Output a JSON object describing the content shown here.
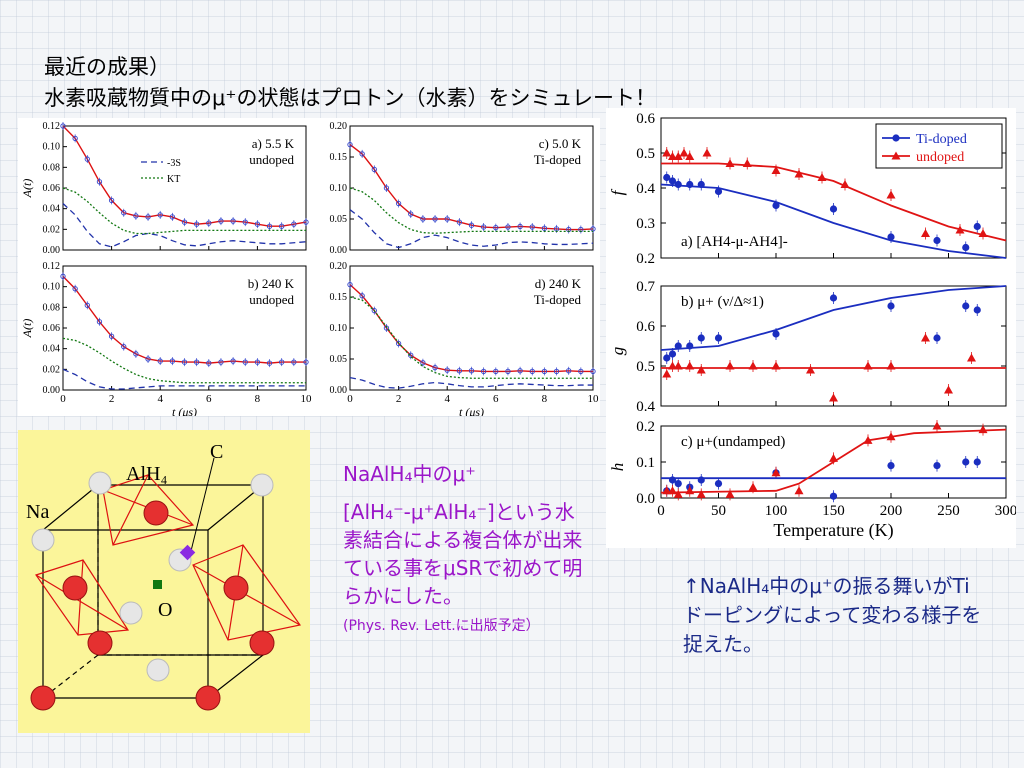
{
  "title": {
    "line1": "最近の成果）",
    "line2": "水素吸蔵物質中のμ⁺の状態はプロトン（水素）をシミュレート！"
  },
  "caption_left": {
    "line1": "NaAlH₄中のμ⁺",
    "line2": "[AlH₄⁻-μ⁺AlH₄⁻]という水素結合による複合体が出来ている事をμSRで初めて明らかにした。",
    "ref": "(Phys. Rev. Lett.に出版予定）"
  },
  "caption_right": "↑NaAlH₄中のμ⁺の振る舞いがTiドーピングによって変わる様子を捉えた。",
  "molecule_labels": {
    "c": "C",
    "alh4": "AlH₄",
    "na": "Na",
    "o": "O"
  },
  "colors": {
    "data": "#3344cc",
    "fit": "#dd1111",
    "s3": "#2233aa",
    "kt": "#117711",
    "ti": "#1b2ec0",
    "undoped": "#e01414"
  },
  "chart_data": [
    {
      "type": "line",
      "panel": "a) 5.5 K\nundoped",
      "label_line1": "a) 5.5 K",
      "label_line2": "undoped",
      "ylabel": "A(t)",
      "xlabel": "",
      "ylim": [
        0,
        0.12
      ],
      "xlim": [
        0,
        10
      ],
      "yticks": [
        "0.00",
        "0.02",
        "0.04",
        "0.06",
        "0.08",
        "0.10",
        "0.12"
      ],
      "xticks": [],
      "legend": [
        "3S",
        "KT"
      ],
      "series": [
        {
          "name": "data",
          "x": [
            0,
            0.5,
            1,
            1.5,
            2,
            2.5,
            3,
            3.5,
            4,
            4.5,
            5,
            5.5,
            6,
            6.5,
            7,
            7.5,
            8,
            8.5,
            9,
            9.5,
            10
          ],
          "y": [
            0.12,
            0.108,
            0.088,
            0.066,
            0.048,
            0.036,
            0.033,
            0.032,
            0.034,
            0.032,
            0.027,
            0.025,
            0.026,
            0.028,
            0.028,
            0.027,
            0.025,
            0.023,
            0.023,
            0.025,
            0.027
          ]
        },
        {
          "name": "3S",
          "x": [
            0,
            0.5,
            1,
            1.5,
            2,
            2.5,
            3,
            3.5,
            4,
            4.5,
            5,
            5.5,
            6,
            6.5,
            7,
            7.5,
            8,
            8.5,
            9,
            9.5,
            10
          ],
          "y": [
            0.045,
            0.034,
            0.018,
            0.006,
            0.003,
            0.008,
            0.014,
            0.016,
            0.014,
            0.009,
            0.005,
            0.004,
            0.006,
            0.008,
            0.009,
            0.008,
            0.007,
            0.006,
            0.006,
            0.007,
            0.008
          ]
        },
        {
          "name": "KT",
          "x": [
            0,
            0.5,
            1,
            1.5,
            2,
            2.5,
            3,
            3.5,
            4,
            4.5,
            5,
            5.5,
            6,
            6.5,
            7,
            7.5,
            8,
            8.5,
            9,
            9.5,
            10
          ],
          "y": [
            0.06,
            0.056,
            0.047,
            0.036,
            0.026,
            0.019,
            0.016,
            0.016,
            0.017,
            0.018,
            0.019,
            0.019,
            0.019,
            0.019,
            0.019,
            0.019,
            0.019,
            0.019,
            0.019,
            0.019,
            0.019
          ]
        }
      ]
    },
    {
      "type": "line",
      "panel": "c) 5.0 K\nTi-doped",
      "label_line1": "c) 5.0 K",
      "label_line2": "Ti-doped",
      "ylabel": "",
      "xlabel": "",
      "ylim": [
        0,
        0.2
      ],
      "xlim": [
        0,
        10
      ],
      "yticks": [
        "0.00",
        "0.05",
        "0.10",
        "0.15",
        "0.20"
      ],
      "xticks": [],
      "legend": [],
      "series": [
        {
          "name": "data",
          "x": [
            0,
            0.5,
            1,
            1.5,
            2,
            2.5,
            3,
            3.5,
            4,
            4.5,
            5,
            5.5,
            6,
            6.5,
            7,
            7.5,
            8,
            8.5,
            9,
            9.5,
            10
          ],
          "y": [
            0.17,
            0.155,
            0.13,
            0.1,
            0.075,
            0.058,
            0.05,
            0.05,
            0.05,
            0.045,
            0.04,
            0.037,
            0.036,
            0.037,
            0.038,
            0.037,
            0.035,
            0.034,
            0.033,
            0.033,
            0.034
          ]
        },
        {
          "name": "3S",
          "x": [
            0,
            0.5,
            1,
            1.5,
            2,
            2.5,
            3,
            3.5,
            4,
            4.5,
            5,
            5.5,
            6,
            6.5,
            7,
            7.5,
            8,
            8.5,
            9,
            9.5,
            10
          ],
          "y": [
            0.065,
            0.05,
            0.028,
            0.01,
            0.004,
            0.01,
            0.02,
            0.024,
            0.02,
            0.013,
            0.008,
            0.006,
            0.008,
            0.012,
            0.013,
            0.012,
            0.01,
            0.009,
            0.009,
            0.01,
            0.011
          ]
        },
        {
          "name": "KT",
          "x": [
            0,
            0.5,
            1,
            1.5,
            2,
            2.5,
            3,
            3.5,
            4,
            4.5,
            5,
            5.5,
            6,
            6.5,
            7,
            7.5,
            8,
            8.5,
            9,
            9.5,
            10
          ],
          "y": [
            0.1,
            0.094,
            0.08,
            0.06,
            0.044,
            0.033,
            0.028,
            0.027,
            0.028,
            0.029,
            0.03,
            0.03,
            0.03,
            0.03,
            0.03,
            0.03,
            0.03,
            0.03,
            0.03,
            0.03,
            0.03
          ]
        }
      ]
    },
    {
      "type": "line",
      "panel": "b) 240 K\nundoped",
      "label_line1": "b) 240 K",
      "label_line2": "undoped",
      "ylabel": "A(t)",
      "xlabel": "t (μs)",
      "ylim": [
        0,
        0.12
      ],
      "xlim": [
        0,
        10
      ],
      "yticks": [
        "0.00",
        "0.02",
        "0.04",
        "0.06",
        "0.08",
        "0.10",
        "0.12"
      ],
      "xticks": [
        "0",
        "2",
        "4",
        "6",
        "8",
        "10"
      ],
      "legend": [],
      "series": [
        {
          "name": "data",
          "x": [
            0,
            0.5,
            1,
            1.5,
            2,
            2.5,
            3,
            3.5,
            4,
            4.5,
            5,
            5.5,
            6,
            6.5,
            7,
            7.5,
            8,
            8.5,
            9,
            9.5,
            10
          ],
          "y": [
            0.11,
            0.098,
            0.082,
            0.066,
            0.052,
            0.042,
            0.035,
            0.03,
            0.028,
            0.028,
            0.027,
            0.027,
            0.026,
            0.027,
            0.028,
            0.027,
            0.027,
            0.026,
            0.027,
            0.027,
            0.027
          ]
        },
        {
          "name": "3S",
          "x": [
            0,
            0.5,
            1,
            1.5,
            2,
            2.5,
            3,
            3.5,
            4,
            4.5,
            5,
            5.5,
            6,
            6.5,
            7,
            7.5,
            8,
            8.5,
            9,
            9.5,
            10
          ],
          "y": [
            0.02,
            0.015,
            0.008,
            0.003,
            0.001,
            0.001,
            0.002,
            0.003,
            0.004,
            0.004,
            0.004,
            0.004,
            0.004,
            0.004,
            0.004,
            0.004,
            0.004,
            0.004,
            0.004,
            0.004,
            0.004
          ]
        },
        {
          "name": "KT",
          "x": [
            0,
            0.5,
            1,
            1.5,
            2,
            2.5,
            3,
            3.5,
            4,
            4.5,
            5,
            5.5,
            6,
            6.5,
            7,
            7.5,
            8,
            8.5,
            9,
            9.5,
            10
          ],
          "y": [
            0.05,
            0.048,
            0.043,
            0.036,
            0.028,
            0.021,
            0.015,
            0.011,
            0.009,
            0.008,
            0.007,
            0.007,
            0.007,
            0.007,
            0.007,
            0.007,
            0.007,
            0.007,
            0.007,
            0.007,
            0.007
          ]
        }
      ]
    },
    {
      "type": "line",
      "panel": "d) 240 K\nTi-doped",
      "label_line1": "d) 240 K",
      "label_line2": "Ti-doped",
      "ylabel": "",
      "xlabel": "t (μs)",
      "ylim": [
        0,
        0.2
      ],
      "xlim": [
        0,
        10
      ],
      "yticks": [
        "0.00",
        "0.05",
        "0.10",
        "0.15",
        "0.20"
      ],
      "xticks": [
        "0",
        "2",
        "4",
        "6",
        "8",
        "10"
      ],
      "legend": [],
      "series": [
        {
          "name": "data",
          "x": [
            0,
            0.5,
            1,
            1.5,
            2,
            2.5,
            3,
            3.5,
            4,
            4.5,
            5,
            5.5,
            6,
            6.5,
            7,
            7.5,
            8,
            8.5,
            9,
            9.5,
            10
          ],
          "y": [
            0.17,
            0.152,
            0.128,
            0.1,
            0.075,
            0.056,
            0.044,
            0.036,
            0.032,
            0.031,
            0.031,
            0.03,
            0.03,
            0.03,
            0.031,
            0.03,
            0.03,
            0.03,
            0.031,
            0.03,
            0.03
          ]
        },
        {
          "name": "3S",
          "x": [
            0,
            0.5,
            1,
            1.5,
            2,
            2.5,
            3,
            3.5,
            4,
            4.5,
            5,
            5.5,
            6,
            6.5,
            7,
            7.5,
            8,
            8.5,
            9,
            9.5,
            10
          ],
          "y": [
            0.02,
            0.016,
            0.009,
            0.004,
            0.003,
            0.006,
            0.01,
            0.012,
            0.01,
            0.007,
            0.005,
            0.005,
            0.007,
            0.009,
            0.01,
            0.009,
            0.008,
            0.007,
            0.007,
            0.008,
            0.008
          ]
        },
        {
          "name": "KT",
          "x": [
            0,
            0.5,
            1,
            1.5,
            2,
            2.5,
            3,
            3.5,
            4,
            4.5,
            5,
            5.5,
            6,
            6.5,
            7,
            7.5,
            8,
            8.5,
            9,
            9.5,
            10
          ],
          "y": [
            0.15,
            0.145,
            0.128,
            0.102,
            0.076,
            0.054,
            0.038,
            0.028,
            0.022,
            0.02,
            0.019,
            0.019,
            0.019,
            0.019,
            0.019,
            0.019,
            0.019,
            0.019,
            0.019,
            0.019,
            0.019
          ]
        }
      ]
    },
    {
      "type": "scatter",
      "panel": "a) [AH4-μ-AH4]-",
      "ylabel": "f",
      "xlabel": "Temperature (K)",
      "xlim": [
        0,
        300
      ],
      "ylim": [
        0.2,
        0.6
      ],
      "yticks": [
        "0.2",
        "0.3",
        "0.4",
        "0.5",
        "0.6"
      ],
      "legend": [
        "Ti-doped",
        "undoped"
      ],
      "series": [
        {
          "name": "Ti-doped",
          "x": [
            5,
            10,
            15,
            25,
            35,
            50,
            100,
            150,
            200,
            240,
            265,
            275
          ],
          "y": [
            0.43,
            0.42,
            0.41,
            0.41,
            0.41,
            0.39,
            0.35,
            0.34,
            0.26,
            0.25,
            0.23,
            0.29
          ]
        },
        {
          "name": "undoped",
          "x": [
            5,
            10,
            15,
            20,
            25,
            40,
            60,
            75,
            100,
            120,
            140,
            160,
            200,
            230,
            260,
            280
          ],
          "y": [
            0.5,
            0.49,
            0.49,
            0.5,
            0.49,
            0.5,
            0.47,
            0.47,
            0.45,
            0.44,
            0.43,
            0.41,
            0.38,
            0.27,
            0.28,
            0.27
          ]
        },
        {
          "name": "Ti-doped fit",
          "x": [
            0,
            50,
            100,
            150,
            200,
            250,
            300
          ],
          "y": [
            0.41,
            0.4,
            0.36,
            0.3,
            0.25,
            0.22,
            0.2
          ]
        },
        {
          "name": "undoped fit",
          "x": [
            0,
            50,
            100,
            150,
            200,
            250,
            300
          ],
          "y": [
            0.47,
            0.47,
            0.46,
            0.42,
            0.35,
            0.29,
            0.25
          ]
        }
      ]
    },
    {
      "type": "scatter",
      "panel": "b) μ+ (ν/Δ≈1)",
      "ylabel": "g",
      "xlabel": "Temperature (K)",
      "xlim": [
        0,
        300
      ],
      "ylim": [
        0.4,
        0.7
      ],
      "yticks": [
        "0.4",
        "0.5",
        "0.6",
        "0.7"
      ],
      "series": [
        {
          "name": "Ti-doped",
          "x": [
            5,
            10,
            15,
            25,
            35,
            50,
            100,
            150,
            200,
            240,
            265,
            275
          ],
          "y": [
            0.52,
            0.53,
            0.55,
            0.55,
            0.57,
            0.57,
            0.58,
            0.67,
            0.65,
            0.57,
            0.65,
            0.64
          ]
        },
        {
          "name": "undoped",
          "x": [
            5,
            10,
            15,
            25,
            35,
            60,
            80,
            100,
            130,
            150,
            180,
            200,
            230,
            250,
            270
          ],
          "y": [
            0.48,
            0.5,
            0.5,
            0.5,
            0.49,
            0.5,
            0.5,
            0.5,
            0.49,
            0.42,
            0.5,
            0.5,
            0.57,
            0.44,
            0.52
          ]
        },
        {
          "name": "Ti-doped fit",
          "x": [
            0,
            50,
            100,
            150,
            200,
            250,
            300
          ],
          "y": [
            0.54,
            0.55,
            0.59,
            0.64,
            0.67,
            0.69,
            0.7
          ]
        },
        {
          "name": "undoped fit",
          "x": [
            0,
            300
          ],
          "y": [
            0.495,
            0.495
          ]
        }
      ]
    },
    {
      "type": "scatter",
      "panel": "c) μ+(undamped)",
      "ylabel": "h",
      "xlabel": "Temperature (K)",
      "xlim": [
        0,
        300
      ],
      "ylim": [
        0,
        0.2
      ],
      "yticks": [
        "0.0",
        "0.1",
        "0.2"
      ],
      "xticks": [
        "0",
        "50",
        "100",
        "150",
        "200",
        "250",
        "300"
      ],
      "series": [
        {
          "name": "Ti-doped",
          "x": [
            5,
            10,
            15,
            25,
            35,
            50,
            100,
            150,
            200,
            240,
            265,
            275
          ],
          "y": [
            0.02,
            0.05,
            0.04,
            0.03,
            0.05,
            0.04,
            0.07,
            0.005,
            0.09,
            0.09,
            0.1,
            0.1
          ]
        },
        {
          "name": "undoped",
          "x": [
            5,
            10,
            15,
            25,
            35,
            60,
            80,
            100,
            120,
            150,
            180,
            200,
            240,
            280
          ],
          "y": [
            0.02,
            0.02,
            0.01,
            0.02,
            0.01,
            0.01,
            0.03,
            0.07,
            0.02,
            0.11,
            0.16,
            0.17,
            0.2,
            0.19
          ]
        },
        {
          "name": "Ti-doped fit",
          "x": [
            0,
            300
          ],
          "y": [
            0.055,
            0.055
          ]
        },
        {
          "name": "undoped fit",
          "x": [
            0,
            100,
            120,
            150,
            180,
            220,
            260,
            300
          ],
          "y": [
            0.015,
            0.02,
            0.04,
            0.1,
            0.16,
            0.18,
            0.185,
            0.19
          ]
        }
      ]
    }
  ]
}
